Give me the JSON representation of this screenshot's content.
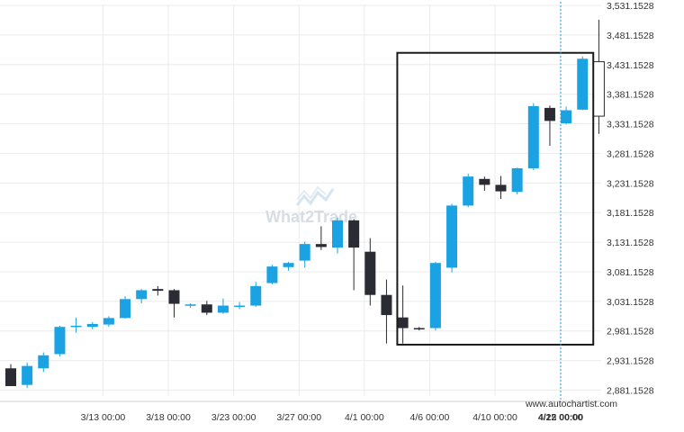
{
  "watermark": {
    "text": "What2Trade"
  },
  "attribution": {
    "text": "www.autochartist.com"
  },
  "colors": {
    "bull": "#1ba2e2",
    "bear": "#2b2b33",
    "grid": "#ebebeb",
    "axis_text": "#333333",
    "pattern_box": "#1a1a1a",
    "current_line": "#1ba2e2"
  },
  "chart_data": {
    "type": "candlestick",
    "title": "",
    "xlabel": "",
    "ylabel": "",
    "ylim": [
      2860.0,
      3531.1528
    ],
    "y_ticks": [
      {
        "label": "3,531.1528",
        "value": 3531.1528
      },
      {
        "label": "3,481.1528",
        "value": 3481.1528
      },
      {
        "label": "3,431.1528",
        "value": 3431.1528
      },
      {
        "label": "3,381.1528",
        "value": 3381.1528
      },
      {
        "label": "3,331.1528",
        "value": 3331.1528
      },
      {
        "label": "3,281.1528",
        "value": 3281.1528
      },
      {
        "label": "3,231.1528",
        "value": 3231.1528
      },
      {
        "label": "3,181.1528",
        "value": 3181.1528
      },
      {
        "label": "3,131.1528",
        "value": 3131.1528
      },
      {
        "label": "3,081.1528",
        "value": 3081.1528
      },
      {
        "label": "3,031.1528",
        "value": 3031.1528
      },
      {
        "label": "2,981.1528",
        "value": 2981.1528
      },
      {
        "label": "2,931.1528",
        "value": 2931.1528
      },
      {
        "label": "2,881.1528",
        "value": 2881.1528
      }
    ],
    "x_ticks": [
      {
        "label": "3/13 00:00",
        "index": 3,
        "bold": false
      },
      {
        "label": "3/18 00:00",
        "index": 7,
        "bold": false
      },
      {
        "label": "3/23 00:00",
        "index": 11,
        "bold": false
      },
      {
        "label": "3/27 00:00",
        "index": 15,
        "bold": false
      },
      {
        "label": "4/1 00:00",
        "index": 19,
        "bold": false
      },
      {
        "label": "4/6 00:00",
        "index": 23,
        "bold": false
      },
      {
        "label": "4/10 00:00",
        "index": 27,
        "bold": false
      },
      {
        "label": "4/15 00:00",
        "index": 31,
        "bold": false
      },
      {
        "label": "4/22 00:00",
        "index": 35.4,
        "bold": true
      }
    ],
    "candles": [
      {
        "o": 2918,
        "h": 2925,
        "l": 2888,
        "c": 2888
      },
      {
        "o": 2890,
        "h": 2928,
        "l": 2885,
        "c": 2922
      },
      {
        "o": 2918,
        "h": 2945,
        "l": 2912,
        "c": 2940
      },
      {
        "o": 2942,
        "h": 2990,
        "l": 2938,
        "c": 2988
      },
      {
        "o": 2988,
        "h": 3004,
        "l": 2978,
        "c": 2990
      },
      {
        "o": 2988,
        "h": 2996,
        "l": 2984,
        "c": 2993
      },
      {
        "o": 2992,
        "h": 3006,
        "l": 2988,
        "c": 3003
      },
      {
        "o": 3003,
        "h": 3040,
        "l": 3002,
        "c": 3035
      },
      {
        "o": 3035,
        "h": 3052,
        "l": 3028,
        "c": 3050
      },
      {
        "o": 3052,
        "h": 3057,
        "l": 3041,
        "c": 3049
      },
      {
        "o": 3050,
        "h": 3052,
        "l": 3004,
        "c": 3027
      },
      {
        "o": 3026,
        "h": 3028,
        "l": 3020,
        "c": 3026
      },
      {
        "o": 3026,
        "h": 3032,
        "l": 3008,
        "c": 3012
      },
      {
        "o": 3012,
        "h": 3036,
        "l": 3010,
        "c": 3024
      },
      {
        "o": 3022,
        "h": 3030,
        "l": 3018,
        "c": 3024
      },
      {
        "o": 3024,
        "h": 3064,
        "l": 3022,
        "c": 3057
      },
      {
        "o": 3062,
        "h": 3093,
        "l": 3060,
        "c": 3090
      },
      {
        "o": 3089,
        "h": 3098,
        "l": 3083,
        "c": 3096
      },
      {
        "o": 3100,
        "h": 3132,
        "l": 3088,
        "c": 3128
      },
      {
        "o": 3128,
        "h": 3158,
        "l": 3118,
        "c": 3123
      },
      {
        "o": 3122,
        "h": 3173,
        "l": 3112,
        "c": 3168
      },
      {
        "o": 3168,
        "h": 3170,
        "l": 3050,
        "c": 3122
      },
      {
        "o": 3115,
        "h": 3138,
        "l": 3024,
        "c": 3042
      },
      {
        "o": 3042,
        "h": 3068,
        "l": 2960,
        "c": 3008
      },
      {
        "o": 3004,
        "h": 3058,
        "l": 2960,
        "c": 2986
      },
      {
        "o": 2986,
        "h": 2988,
        "l": 2982,
        "c": 2985
      },
      {
        "o": 2986,
        "h": 3098,
        "l": 2982,
        "c": 3096
      },
      {
        "o": 3088,
        "h": 3196,
        "l": 3080,
        "c": 3193
      },
      {
        "o": 3193,
        "h": 3247,
        "l": 3190,
        "c": 3242
      },
      {
        "o": 3238,
        "h": 3242,
        "l": 3218,
        "c": 3228
      },
      {
        "o": 3228,
        "h": 3243,
        "l": 3204,
        "c": 3217
      },
      {
        "o": 3216,
        "h": 3257,
        "l": 3212,
        "c": 3256
      },
      {
        "o": 3256,
        "h": 3366,
        "l": 3253,
        "c": 3361
      },
      {
        "o": 3358,
        "h": 3362,
        "l": 3294,
        "c": 3336
      },
      {
        "o": 3332,
        "h": 3360,
        "l": 3330,
        "c": 3354
      },
      {
        "o": 3355,
        "h": 3445,
        "l": 3354,
        "c": 3441
      },
      {
        "o": 3436,
        "h": 3507,
        "l": 3314,
        "c": 3344
      }
    ],
    "current_candle": {
      "index": 36,
      "outlined": true
    },
    "pattern_box": {
      "start_index": 24.1,
      "end_index": 36.1,
      "high": 3451.0,
      "low": 2958.0
    },
    "current_time_index": 35.4
  }
}
